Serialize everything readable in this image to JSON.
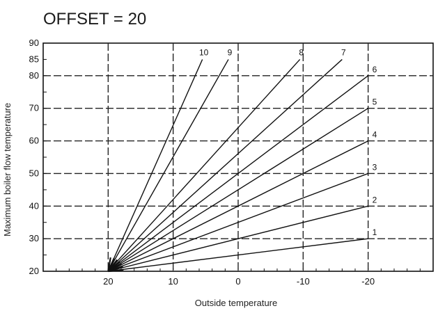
{
  "chart_data": {
    "type": "line",
    "title": "OFFSET = 20",
    "xlabel": "Outside temperature",
    "ylabel": "Maximum boiler flow temperature",
    "x_ticks": [
      20,
      10,
      0,
      -10,
      -20
    ],
    "x_tick_labels": [
      "20",
      "10",
      "0",
      "-10",
      "-20"
    ],
    "xlim": [
      30,
      -30
    ],
    "y_ticks": [
      20,
      30,
      40,
      50,
      60,
      70,
      80,
      85,
      90
    ],
    "y_tick_labels": [
      "20",
      "30",
      "40",
      "50",
      "60",
      "70",
      "80",
      "85",
      "90"
    ],
    "ylim": [
      20,
      90
    ],
    "grid": "dashed at x = 20, 10, 0, -10, -20 and y = 30, 40, 50, 60, 70, 80",
    "series": [
      {
        "name": "1",
        "x": [
          20,
          -20
        ],
        "y": [
          20,
          30
        ]
      },
      {
        "name": "2",
        "x": [
          20,
          -20
        ],
        "y": [
          20,
          40
        ]
      },
      {
        "name": "3",
        "x": [
          20,
          -20
        ],
        "y": [
          20,
          50
        ]
      },
      {
        "name": "4",
        "x": [
          20,
          -20
        ],
        "y": [
          20,
          60
        ]
      },
      {
        "name": "5",
        "x": [
          20,
          -20
        ],
        "y": [
          20,
          70
        ]
      },
      {
        "name": "6",
        "x": [
          20,
          -20
        ],
        "y": [
          20,
          80
        ]
      },
      {
        "name": "7",
        "x": [
          20,
          -16
        ],
        "y": [
          20,
          85
        ]
      },
      {
        "name": "8",
        "x": [
          20,
          -9.5
        ],
        "y": [
          20,
          85
        ]
      },
      {
        "name": "9",
        "x": [
          20,
          1.5
        ],
        "y": [
          20,
          85
        ]
      },
      {
        "name": "10",
        "x": [
          20,
          5.5
        ],
        "y": [
          20,
          85
        ]
      }
    ]
  }
}
